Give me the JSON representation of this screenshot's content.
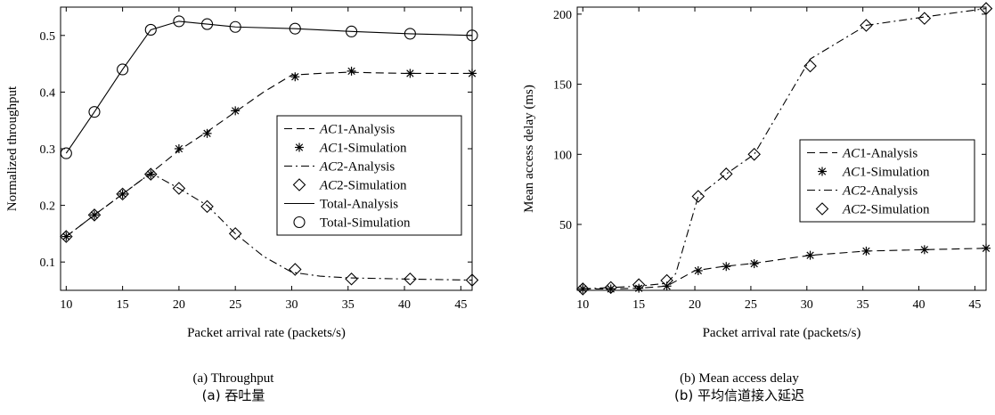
{
  "chart_data": [
    {
      "type": "line",
      "xlabel": "Packet arrival rate (packets/s)",
      "ylabel": "Normalized throughput",
      "xlim": [
        9.5,
        46
      ],
      "ylim": [
        0.05,
        0.55
      ],
      "xticks": [
        10,
        15,
        20,
        25,
        30,
        35,
        40,
        45
      ],
      "xtick_labels": [
        "10",
        "15",
        "20",
        "25",
        "30",
        "35",
        "40",
        "45"
      ],
      "yticks": [
        0.1,
        0.2,
        0.3,
        0.4,
        0.5
      ],
      "ytick_labels": [
        "0.1",
        "0.2",
        "0.3",
        "0.4",
        "0.5"
      ],
      "caption": "(a) Throughput",
      "caption_cn": "(a)  吞吐量",
      "legend_position": "right",
      "legend": [
        {
          "italic": "AC",
          "rest": "1-Analysis",
          "line": "dashed",
          "marker": "none"
        },
        {
          "italic": "AC",
          "rest": "1-Simulation",
          "line": "none",
          "marker": "star"
        },
        {
          "italic": "AC",
          "rest": "2-Analysis",
          "line": "dashdot",
          "marker": "none"
        },
        {
          "italic": "AC",
          "rest": "2-Simulation",
          "line": "none",
          "marker": "diamond"
        },
        {
          "italic": "",
          "rest": "Total-Analysis",
          "line": "solid",
          "marker": "none"
        },
        {
          "italic": "",
          "rest": "Total-Simulation",
          "line": "none",
          "marker": "circle"
        }
      ],
      "series": [
        {
          "name": "AC1-Analysis",
          "style": "dashed",
          "x": [
            10,
            12.5,
            15,
            17.5,
            20,
            22.5,
            25,
            27.5,
            30,
            32.5,
            35,
            40,
            46
          ],
          "y": [
            0.145,
            0.183,
            0.22,
            0.257,
            0.297,
            0.33,
            0.365,
            0.4,
            0.43,
            0.433,
            0.435,
            0.433,
            0.433
          ]
        },
        {
          "name": "AC1-Simulation",
          "style": "star",
          "x": [
            10,
            12.5,
            15,
            17.5,
            20,
            22.5,
            25,
            30.3,
            35.3,
            40.5,
            46
          ],
          "y": [
            0.145,
            0.183,
            0.22,
            0.255,
            0.3,
            0.327,
            0.367,
            0.427,
            0.437,
            0.433,
            0.433
          ]
        },
        {
          "name": "AC2-Analysis",
          "style": "dashdot",
          "x": [
            10,
            12.5,
            15,
            17.5,
            20,
            22.5,
            25,
            27.5,
            30,
            32.5,
            35,
            40,
            46
          ],
          "y": [
            0.145,
            0.183,
            0.22,
            0.257,
            0.23,
            0.2,
            0.15,
            0.11,
            0.082,
            0.075,
            0.072,
            0.07,
            0.068
          ]
        },
        {
          "name": "AC2-Simulation",
          "style": "diamond",
          "x": [
            10,
            12.5,
            15,
            17.5,
            20,
            22.5,
            25,
            30.3,
            35.3,
            40.5,
            46
          ],
          "y": [
            0.145,
            0.183,
            0.22,
            0.255,
            0.23,
            0.198,
            0.15,
            0.087,
            0.07,
            0.07,
            0.068
          ]
        },
        {
          "name": "Total-Analysis",
          "style": "solid",
          "x": [
            10,
            12.5,
            15,
            17.5,
            20,
            22.5,
            25,
            30.3,
            35.3,
            40.5,
            46
          ],
          "y": [
            0.292,
            0.365,
            0.44,
            0.51,
            0.525,
            0.52,
            0.515,
            0.512,
            0.507,
            0.503,
            0.5
          ]
        },
        {
          "name": "Total-Simulation",
          "style": "circle",
          "x": [
            10,
            12.5,
            15,
            17.5,
            20,
            22.5,
            25,
            30.3,
            35.3,
            40.5,
            46
          ],
          "y": [
            0.292,
            0.365,
            0.44,
            0.51,
            0.525,
            0.52,
            0.515,
            0.512,
            0.507,
            0.503,
            0.5
          ]
        }
      ]
    },
    {
      "type": "line",
      "xlabel": "Packet arrival rate (packets/s)",
      "ylabel": "Mean access delay (ms)",
      "xlim": [
        9.5,
        46
      ],
      "ylim": [
        3,
        205
      ],
      "xticks": [
        10,
        15,
        20,
        25,
        30,
        35,
        40,
        45
      ],
      "xtick_labels": [
        "10",
        "15",
        "20",
        "25",
        "30",
        "35",
        "40",
        "45"
      ],
      "yticks": [
        50,
        100,
        150,
        200
      ],
      "ytick_labels": [
        "50",
        "100",
        "150",
        "200"
      ],
      "caption": "(b) Mean access delay",
      "caption_cn": "(b)  平均信道接入延迟",
      "legend_position": "right",
      "legend": [
        {
          "italic": "AC",
          "rest": "1-Analysis",
          "line": "dashed",
          "marker": "none"
        },
        {
          "italic": "AC",
          "rest": "1-Simulation",
          "line": "none",
          "marker": "star"
        },
        {
          "italic": "AC",
          "rest": "2-Analysis",
          "line": "dashdot",
          "marker": "none"
        },
        {
          "italic": "AC",
          "rest": "2-Simulation",
          "line": "none",
          "marker": "diamond"
        }
      ],
      "series": [
        {
          "name": "AC1-Analysis",
          "style": "dashed",
          "x": [
            10,
            12.5,
            15,
            17.5,
            20,
            22.5,
            25,
            30.3,
            35.3,
            40.5,
            46
          ],
          "y": [
            4,
            4,
            4.5,
            6,
            17,
            20,
            22,
            28,
            31,
            32,
            33
          ]
        },
        {
          "name": "AC1-Simulation",
          "style": "star",
          "x": [
            10,
            12.5,
            15,
            17.5,
            20.3,
            22.8,
            25.3,
            30.3,
            35.3,
            40.5,
            46
          ],
          "y": [
            4,
            4,
            4.5,
            6,
            17,
            20,
            22,
            28,
            31,
            32,
            33
          ]
        },
        {
          "name": "AC2-Analysis",
          "style": "dashdot",
          "x": [
            10,
            12.5,
            15,
            17.5,
            18.3,
            20.3,
            22.8,
            25.3,
            27.5,
            30.3,
            35.3,
            40.5,
            46
          ],
          "y": [
            4,
            5,
            6,
            8,
            15,
            70,
            86,
            100,
            130,
            168,
            192,
            198,
            204
          ]
        },
        {
          "name": "AC2-Simulation",
          "style": "diamond",
          "x": [
            10,
            12.5,
            15,
            17.5,
            20.3,
            22.8,
            25.3,
            30.3,
            35.3,
            40.5,
            46
          ],
          "y": [
            4,
            5,
            7,
            10,
            70,
            86,
            100,
            163,
            192,
            197,
            204
          ]
        }
      ]
    }
  ]
}
